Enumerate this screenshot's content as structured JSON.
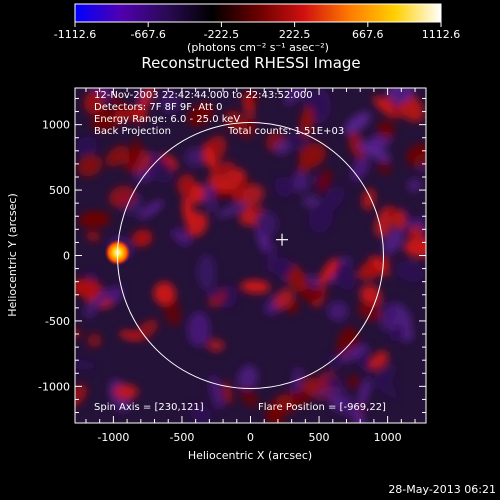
{
  "chart_data": {
    "type": "heatmap",
    "title": "Reconstructed RHESSI Image",
    "xlabel": "Heliocentric X (arcsec)",
    "ylabel": "Heliocentric Y (arcsec)",
    "xlim": [
      -1280,
      1280
    ],
    "ylim": [
      -1280,
      1280
    ],
    "x_ticks": [
      -1000,
      -500,
      0,
      500,
      1000
    ],
    "y_ticks": [
      -1000,
      -500,
      0,
      500,
      1000
    ],
    "x_tick_labels": [
      "-1000",
      "-500",
      "0",
      "500",
      "1000"
    ],
    "y_tick_labels": [
      "-1000",
      "-500",
      "0",
      "500",
      "1000"
    ],
    "colorbar": {
      "min": -1112.6,
      "max": 1112.6,
      "tick_labels": [
        "-1112.6",
        "-667.6",
        "-222.5",
        "222.5",
        "667.6",
        "1112.6"
      ],
      "unit_text": "(photons cm⁻² s⁻¹ asec⁻²)",
      "colormap": [
        "#0000ff",
        "#5000b0",
        "#2a0a55",
        "#000000",
        "#6a0000",
        "#d01010",
        "#ff7a00",
        "#ffd000",
        "#ffffff"
      ]
    },
    "annotations": [
      "12-Nov-2003 22:42:44.000 to 22:43:52.000",
      "Detectors: 7F 8F 9F, Att 0",
      "Energy Range: 6.0 - 25.0 keV",
      "Back Projection"
    ],
    "total_counts": "Total counts: 1.51E+03",
    "spin_axis": "Spin Axis = [230,121]",
    "flare_position": "Flare Position = [-969,22]",
    "solar_limb_radius": 970,
    "sun_center": [
      0,
      0
    ],
    "spin_axis_marker": [
      230,
      121
    ],
    "bright_source": {
      "x": -969,
      "y": 22,
      "level": 1112.6
    }
  },
  "footer": {
    "timestamp": "28-May-2013 06:21"
  }
}
